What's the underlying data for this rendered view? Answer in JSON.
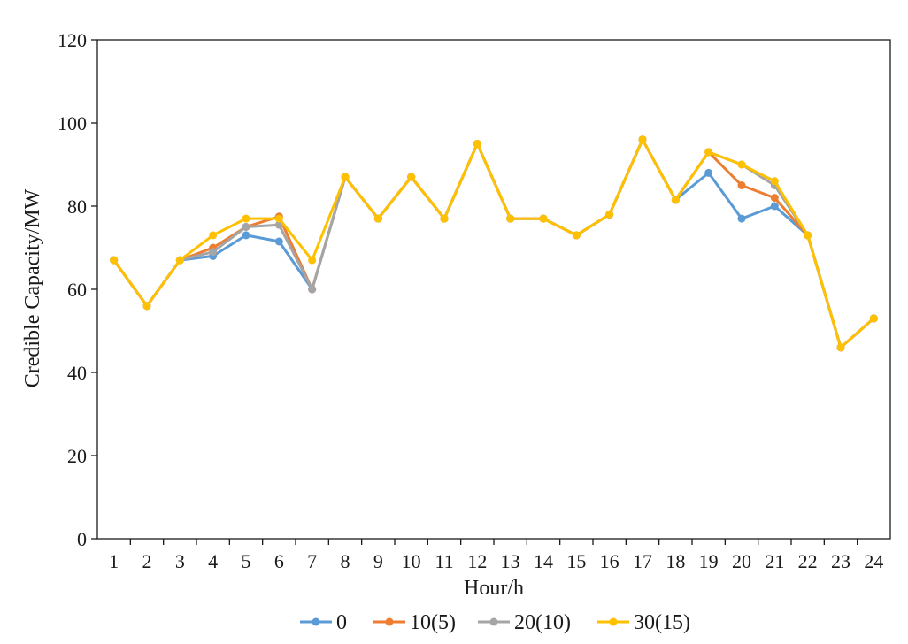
{
  "chart_data": {
    "type": "line",
    "title": "",
    "xlabel": "Hour/h",
    "ylabel": "Credible Capacity/MW",
    "ylim": [
      0,
      120
    ],
    "y_ticks": [
      0,
      20,
      40,
      60,
      80,
      100,
      120
    ],
    "grid": false,
    "legend_position": "bottom",
    "x": [
      "1",
      "2",
      "3",
      "4",
      "5",
      "6",
      "7",
      "8",
      "9",
      "10",
      "11",
      "12",
      "13",
      "14",
      "15",
      "16",
      "17",
      "18",
      "19",
      "20",
      "21",
      "22",
      "23",
      "24"
    ],
    "series": [
      {
        "name": "0",
        "color": "#5b9bd5",
        "values": [
          67,
          56,
          67,
          68,
          73,
          71.5,
          60,
          87,
          77,
          87,
          77,
          95,
          77,
          77,
          73,
          78,
          96,
          81.5,
          88,
          77,
          80,
          73,
          46,
          53
        ]
      },
      {
        "name": "10(5)",
        "color": "#ed7d31",
        "values": [
          67,
          56,
          67,
          70,
          75,
          77.5,
          60,
          87,
          77,
          87,
          77,
          95,
          77,
          77,
          73,
          78,
          96,
          81.5,
          93,
          85,
          82,
          73,
          46,
          53
        ]
      },
      {
        "name": "20(10)",
        "color": "#a5a5a5",
        "values": [
          67,
          56,
          67,
          69,
          75,
          75.5,
          60,
          87,
          77,
          87,
          77,
          95,
          77,
          77,
          73,
          78,
          96,
          81.5,
          93,
          90,
          85,
          73,
          46,
          53
        ]
      },
      {
        "name": "30(15)",
        "color": "#ffc000",
        "values": [
          67,
          56,
          67,
          73,
          77,
          77,
          67,
          87,
          77,
          87,
          77,
          95,
          77,
          77,
          73,
          78,
          96,
          81.5,
          93,
          90,
          86,
          73,
          46,
          53
        ]
      }
    ]
  }
}
